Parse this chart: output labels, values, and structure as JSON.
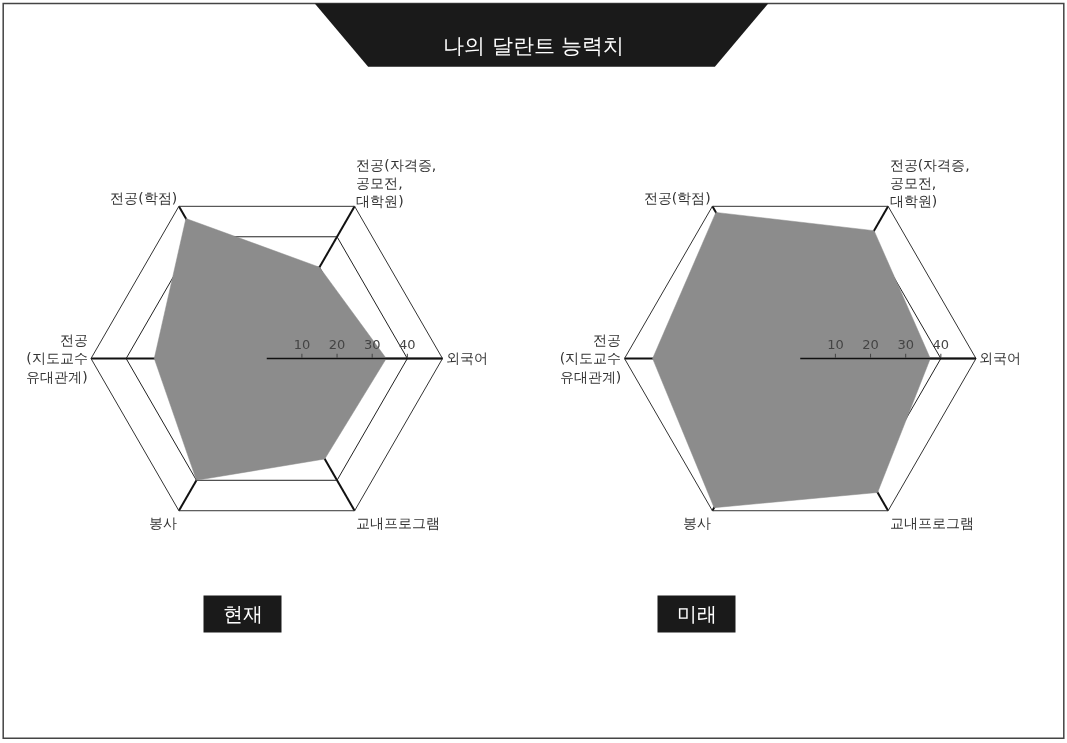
{
  "chart_data": [
    {
      "type": "radar",
      "title": "현재",
      "annotations": [
        "나의 달란트 능력치"
      ],
      "categories": [
        "전공(자격증,\n공모전,\n대학원)",
        "외국어",
        "교내프로그램",
        "봉사",
        "전공\n(지도교수\n유대관계)",
        "전공(학점)"
      ],
      "series": [
        {
          "color": "#8c8c8c",
          "values": [
            30,
            34,
            33,
            40,
            32,
            46
          ]
        }
      ],
      "ylim": [
        0,
        50
      ],
      "yticks": [
        10,
        20,
        30,
        40
      ],
      "grid": true
    },
    {
      "type": "radar",
      "title": "미래",
      "categories": [
        "전공(자격증,\n공모전,\n대학원)",
        "외국어",
        "교내프로그램",
        "봉사",
        "전공\n(지도교수\n유대관계)",
        "전공(학점)"
      ],
      "series": [
        {
          "color": "#8c8c8c",
          "values": [
            42,
            37,
            44,
            49,
            42,
            48
          ]
        }
      ],
      "ylim": [
        0,
        50
      ],
      "yticks": [
        10,
        20,
        30,
        40
      ],
      "grid": true
    }
  ]
}
